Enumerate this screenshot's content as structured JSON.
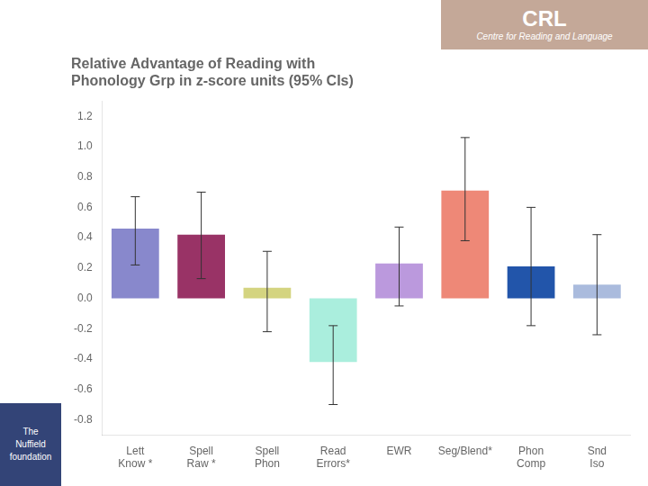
{
  "chart_data": {
    "type": "bar",
    "title": "Relative Advantage of Reading with\nPhonology Grp in z-score units (95% CIs)",
    "categories": [
      "Lett\nKnow *",
      "Spell\nRaw *",
      "Spell\nPhon",
      "Read\nErrors*",
      "EWR",
      "Seg/Blend*",
      "Phon\nComp",
      "Snd\nIso"
    ],
    "values": [
      0.46,
      0.42,
      0.07,
      -0.42,
      0.23,
      0.71,
      0.21,
      0.09
    ],
    "ci_low": [
      0.22,
      0.13,
      -0.22,
      -0.7,
      -0.05,
      0.38,
      -0.18,
      -0.24
    ],
    "ci_high": [
      0.67,
      0.7,
      0.31,
      -0.18,
      0.47,
      1.06,
      0.6,
      0.42
    ],
    "colors": [
      "#8888cc",
      "#993366",
      "#d4d480",
      "#aaeedd",
      "#bb99dd",
      "#ee8877",
      "#2255aa",
      "#aabbdd"
    ],
    "ylim": [
      -0.9,
      1.3
    ],
    "yticks": [
      -0.8,
      -0.6,
      -0.4,
      -0.2,
      {
        "value": 0,
        "label": "0.0"
      },
      0.2,
      0.4,
      0.6,
      0.8,
      {
        "value": 1.0,
        "label": "1.0"
      },
      1.2
    ],
    "grid": false,
    "annotations": [
      "CRL",
      "Centre for Reading and Language",
      "The\nNuffield\nfoundation"
    ]
  }
}
